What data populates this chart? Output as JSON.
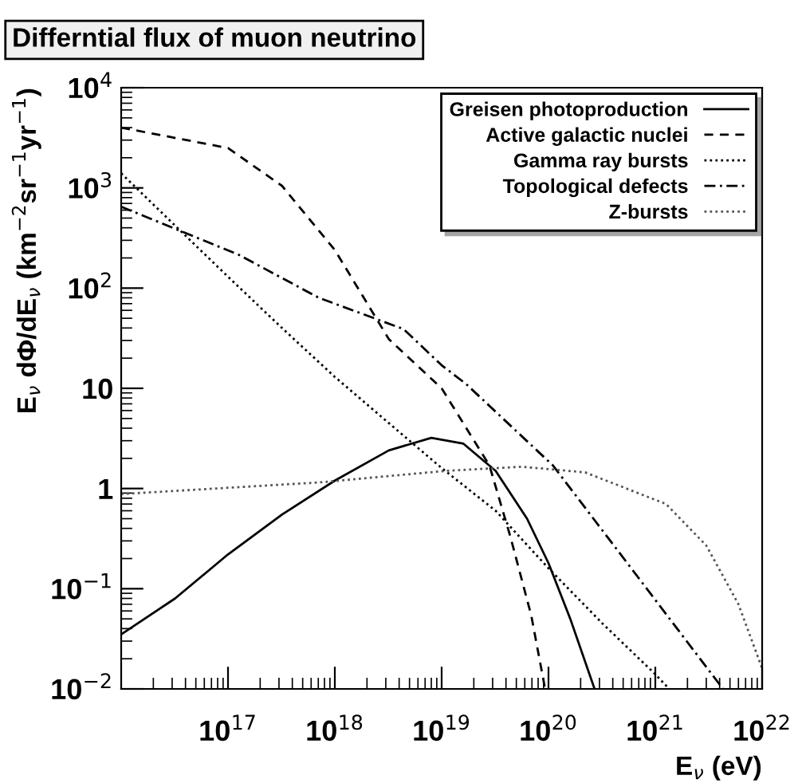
{
  "chart_data": {
    "type": "line",
    "title": "Differntial flux of muon neutrino",
    "xlabel": "E$_{ν}$ (eV)",
    "ylabel": "E$_{ν}$ dΦ/dE$_{ν}$ (km$^{−2}$sr$^{−1}$yr$^{−1}$)",
    "log": "xy",
    "grid": false,
    "legend": "top right",
    "xlim": [
      1e+16,
      1e+22
    ],
    "ylim": [
      0.01,
      10000
    ],
    "xticks": [
      {
        "value": 1e+17,
        "label": "10$^{17}$"
      },
      {
        "value": 1e+18,
        "label": "10$^{18}$"
      },
      {
        "value": 1e+19,
        "label": "10$^{19}$"
      },
      {
        "value": 1e+20,
        "label": "10$^{20}$"
      },
      {
        "value": 1e+21,
        "label": "10$^{21}$"
      },
      {
        "value": 1e+22,
        "label": "10$^{22}$"
      }
    ],
    "yticks": [
      {
        "value": 0.01,
        "label": "10$^{−2}$"
      },
      {
        "value": 0.1,
        "label": "10$^{−1}$"
      },
      1,
      10,
      {
        "value": 100,
        "label": "10$^{2}$"
      },
      {
        "value": 1000,
        "label": "10$^{3}$"
      },
      {
        "value": 10000,
        "label": "10$^{4}$"
      }
    ],
    "series": [
      {
        "name": "Greisen photoproduction",
        "color": "#000000",
        "line_style": "solid",
        "x": [
          1e+16,
          3.2e+16,
          1e+17,
          3.2e+17,
          1e+18,
          3.2e+18,
          8e+18,
          1.6e+19,
          3.2e+19,
          6.3e+19,
          1e+20,
          1.6e+20,
          2.7e+20
        ],
        "values": [
          0.035,
          0.08,
          0.22,
          0.55,
          1.2,
          2.4,
          3.2,
          2.8,
          1.5,
          0.5,
          0.18,
          0.05,
          0.01
        ]
      },
      {
        "name": "Active galactic nuclei",
        "color": "#000000",
        "line_style": "dashed",
        "x": [
          1e+16,
          1e+17,
          3.2e+17,
          1e+18,
          3.2e+18,
          1e+19,
          2.8e+19,
          4.4e+19,
          6.9e+19,
          9.3e+19
        ],
        "values": [
          4000,
          2500,
          1050,
          240,
          31,
          10,
          1.7,
          0.33,
          0.054,
          0.01
        ]
      },
      {
        "name": "Gamma ray bursts",
        "color": "#000000",
        "line_style": "dotted",
        "x": [
          1e+16,
          3.2e+16,
          1e+17,
          3.2e+17,
          1e+18,
          3.2e+18,
          1e+19,
          3.2e+19,
          1e+20,
          3.2e+20,
          1e+21,
          1.35e+21
        ],
        "values": [
          1400,
          420,
          130,
          40,
          13,
          4.5,
          1.6,
          0.6,
          0.16,
          0.045,
          0.014,
          0.01
        ]
      },
      {
        "name": "Topological defects",
        "color": "#000000",
        "line_style": "dashdot",
        "x": [
          1e+16,
          1.26e+17,
          7.1e+17,
          4.4e+18,
          1e+19,
          1.7e+19,
          1.1e+20,
          6.9e+20,
          4.3e+21
        ],
        "values": [
          650,
          215,
          80,
          39,
          17,
          11,
          1.7,
          0.13,
          0.01
        ]
      },
      {
        "name": "Z-bursts",
        "color": "#555555",
        "line_style": "dotted",
        "x": [
          1e+16,
          7.1e+17,
          1.1e+19,
          5.6e+19,
          2.2e+20,
          1.26e+21,
          3e+21,
          6e+21,
          1e+22
        ],
        "values": [
          0.88,
          1.15,
          1.5,
          1.65,
          1.45,
          0.7,
          0.27,
          0.07,
          0.016
        ]
      }
    ]
  }
}
